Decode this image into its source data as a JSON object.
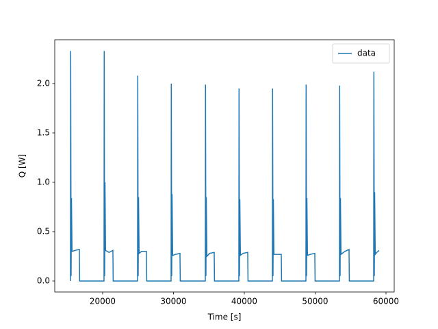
{
  "chart_data": {
    "type": "line",
    "xlabel": "Time [s]",
    "ylabel": "Q [W]",
    "x": [
      15459,
      15489,
      15549,
      15599,
      15679,
      16100,
      16715,
      16755,
      20193,
      20223,
      20283,
      20333,
      20413,
      20900,
      21449,
      21489,
      24928,
      24958,
      25018,
      25068,
      25148,
      25500,
      26184,
      26224,
      29662,
      29692,
      29752,
      29802,
      29882,
      30300,
      30918,
      30958,
      34493,
      34523,
      34583,
      34633,
      34713,
      35100,
      35749,
      35789,
      39227,
      39257,
      39317,
      39367,
      39447,
      39800,
      40483,
      40523,
      43962,
      43992,
      44052,
      44102,
      44182,
      44600,
      45218,
      45258,
      48696,
      48726,
      48786,
      48836,
      48916,
      49300,
      49952,
      49992,
      53431,
      53461,
      53521,
      53571,
      53651,
      54200,
      54783,
      54823,
      58262,
      58292,
      58352,
      58402,
      58482,
      58700,
      59034
    ],
    "series": [
      {
        "name": "data",
        "color": "#1f77b4",
        "values": [
          0,
          2.33,
          0.05,
          0.84,
          0.3,
          0.31,
          0.32,
          0,
          0,
          2.33,
          0.05,
          1.0,
          0.31,
          0.29,
          0.31,
          0,
          0,
          2.08,
          0.05,
          0.85,
          0.28,
          0.3,
          0.3,
          0,
          0,
          2.0,
          0.05,
          0.88,
          0.26,
          0.27,
          0.28,
          0,
          0,
          1.99,
          0.05,
          0.85,
          0.25,
          0.28,
          0.29,
          0,
          0,
          1.95,
          0.05,
          0.83,
          0.26,
          0.28,
          0.29,
          0,
          0,
          1.95,
          0.05,
          0.83,
          0.27,
          0.27,
          0.27,
          0,
          0,
          1.99,
          0.05,
          0.84,
          0.26,
          0.27,
          0.28,
          0,
          0,
          1.98,
          0.05,
          0.84,
          0.27,
          0.3,
          0.32,
          0,
          0,
          2.12,
          0.05,
          0.9,
          0.27,
          0.29,
          0.31
        ]
      }
    ],
    "xlim": [
      13240,
      61160
    ],
    "ylim": [
      -0.111,
      2.444
    ],
    "xticks": [
      20000,
      30000,
      40000,
      50000,
      60000
    ],
    "yticks": [
      {
        "value": 0,
        "label": "0.0"
      },
      0.5,
      {
        "value": 1,
        "label": "1.0"
      },
      1.5,
      {
        "value": 2,
        "label": "2.0"
      }
    ],
    "legend": "upper right"
  }
}
